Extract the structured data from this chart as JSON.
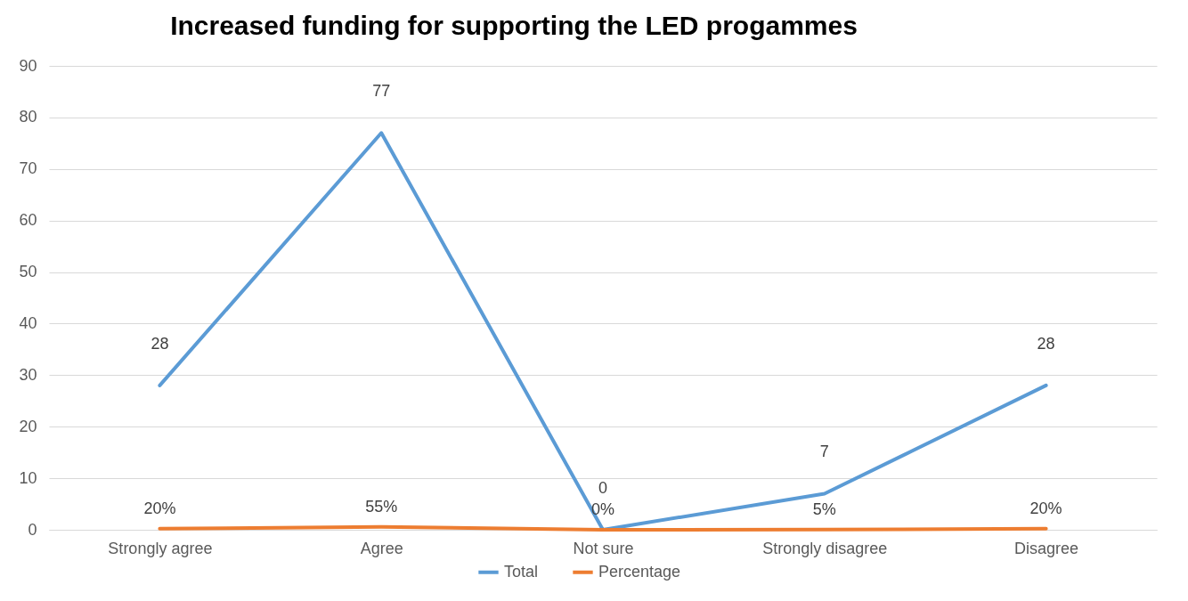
{
  "chart_data": {
    "type": "line",
    "title": "Increased funding for supporting the LED progammes",
    "categories": [
      "Strongly agree",
      "Agree",
      "Not sure",
      "Strongly disagree",
      "Disagree"
    ],
    "series": [
      {
        "name": "Total",
        "color": "#5b9bd5",
        "values": [
          28,
          77,
          0,
          7,
          28
        ],
        "value_labels": [
          "28",
          "77",
          "0",
          "7",
          "28"
        ]
      },
      {
        "name": "Percentage",
        "color": "#ed7d31",
        "values": [
          0.2,
          0.55,
          0,
          0.05,
          0.2
        ],
        "value_labels": [
          "20%",
          "55%",
          "0%",
          "5%",
          "20%"
        ]
      }
    ],
    "ylim": [
      0,
      90
    ],
    "yticks": [
      0,
      10,
      20,
      30,
      40,
      50,
      60,
      70,
      80,
      90
    ],
    "grid": "y",
    "legend": "bottom",
    "marker": "none",
    "line_style": "solid"
  }
}
